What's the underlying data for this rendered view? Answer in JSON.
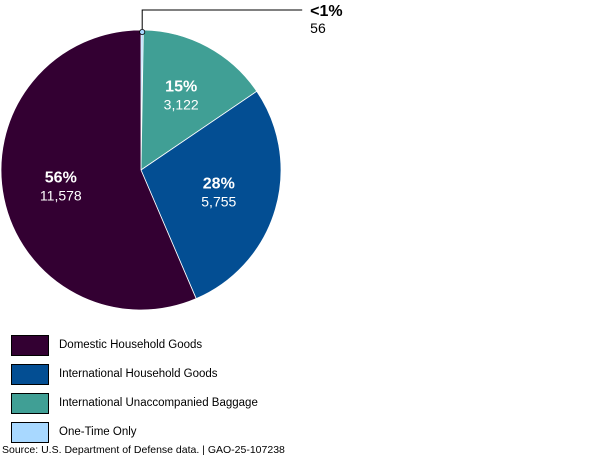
{
  "chart_data": {
    "type": "pie",
    "slices": [
      {
        "label": "One-Time Only",
        "percent_label": "<1%",
        "value": 56,
        "value_label": "56",
        "color": "#a8d8ff"
      },
      {
        "label": "International Unaccompanied Baggage",
        "percent_label": "15%",
        "value": 3122,
        "value_label": "3,122",
        "color": "#409f95"
      },
      {
        "label": "International Household Goods",
        "percent_label": "28%",
        "value": 5755,
        "value_label": "5,755",
        "color": "#034e93"
      },
      {
        "label": "Domestic Household Goods",
        "percent_label": "56%",
        "value": 11578,
        "value_label": "11,578",
        "color": "#330032"
      }
    ],
    "legend": {
      "placement": "bottom-left",
      "items": [
        {
          "label": "Domestic Household Goods",
          "color": "#330032"
        },
        {
          "label": "International Household Goods",
          "color": "#034e93"
        },
        {
          "label": "International Unaccompanied Baggage",
          "color": "#409f95"
        },
        {
          "label": "One-Time Only",
          "color": "#a8d8ff"
        }
      ]
    },
    "source": "Source: U.S. Department of Defense data.  |  GAO-25-107238"
  }
}
